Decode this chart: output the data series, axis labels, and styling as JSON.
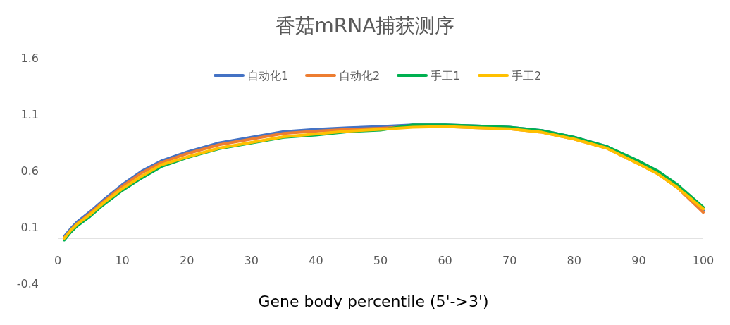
{
  "chart_data": {
    "type": "line",
    "title": "香菇mRNA捕获测序",
    "xlabel": "Gene body percentile (5'->3')",
    "x": [
      1,
      2,
      3,
      5,
      7,
      10,
      13,
      16,
      20,
      25,
      30,
      35,
      40,
      45,
      50,
      55,
      60,
      65,
      70,
      75,
      80,
      85,
      90,
      93,
      96,
      100
    ],
    "series": [
      {
        "name": "自动化1",
        "color": "#4472c4",
        "values": [
          0.015,
          0.085,
          0.145,
          0.235,
          0.335,
          0.475,
          0.595,
          0.685,
          0.765,
          0.845,
          0.895,
          0.945,
          0.965,
          0.98,
          0.99,
          1.005,
          1.005,
          0.995,
          0.985,
          0.955,
          0.895,
          0.815,
          0.675,
          0.585,
          0.465,
          0.245
        ]
      },
      {
        "name": "自动化2",
        "color": "#ed7d31",
        "values": [
          0,
          0.07,
          0.13,
          0.22,
          0.32,
          0.46,
          0.58,
          0.67,
          0.75,
          0.83,
          0.88,
          0.93,
          0.95,
          0.965,
          0.975,
          0.99,
          0.99,
          0.98,
          0.97,
          0.94,
          0.88,
          0.8,
          0.66,
          0.57,
          0.45,
          0.23
        ]
      },
      {
        "name": "手工1",
        "color": "#00b050",
        "values": [
          -0.015,
          0.055,
          0.11,
          0.195,
          0.295,
          0.425,
          0.535,
          0.635,
          0.715,
          0.795,
          0.845,
          0.895,
          0.915,
          0.945,
          0.96,
          1.005,
          1.005,
          0.995,
          0.985,
          0.955,
          0.895,
          0.815,
          0.685,
          0.595,
          0.475,
          0.275
        ]
      },
      {
        "name": "手工2",
        "color": "#ffc000",
        "values": [
          0,
          0.07,
          0.125,
          0.21,
          0.31,
          0.44,
          0.55,
          0.65,
          0.72,
          0.8,
          0.85,
          0.9,
          0.925,
          0.95,
          0.965,
          0.985,
          0.99,
          0.98,
          0.97,
          0.94,
          0.88,
          0.8,
          0.66,
          0.57,
          0.45,
          0.26
        ]
      }
    ],
    "xlim": [
      0,
      100
    ],
    "xticks": [
      0,
      10,
      20,
      30,
      40,
      50,
      60,
      70,
      80,
      90,
      100
    ],
    "ylim": [
      -0.4,
      1.6
    ],
    "yticks": [
      -0.4,
      0.1,
      0.6,
      1.1,
      1.6
    ],
    "legend": "top"
  }
}
